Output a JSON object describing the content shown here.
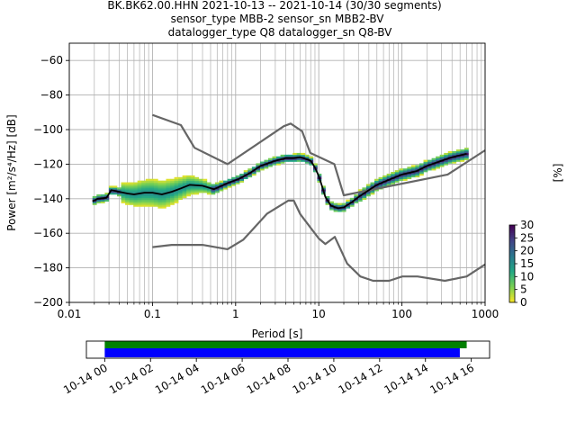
{
  "title": {
    "line1": "BK.BK62.00.HHN   2021-10-13 -- 2021-10-14  (30/30 segments)",
    "line2": "sensor_type MBB-2 sensor_sn MBB2-BV",
    "line3": "datalogger_type Q8 datalogger_sn Q8-BV"
  },
  "colors": {
    "model_curves": "#666666",
    "mode_line": "#000000",
    "green_bar": "#008000",
    "blue_bar": "#0000ff",
    "grid": "#b0b0b0"
  },
  "chart_data": [
    {
      "type": "heatmap",
      "xlabel": "Period [s]",
      "ylabel": "Power [m²/s⁴/Hz] [dB]",
      "xscale": "log",
      "xlim": [
        0.01,
        1000
      ],
      "ylim": [
        -200,
        -50
      ],
      "grid": true,
      "x_tick_labels": [
        "0.01",
        "0.1",
        "1",
        "10",
        "100",
        "1000"
      ],
      "x_tick_values": [
        0.01,
        0.1,
        1,
        10,
        100,
        1000
      ],
      "y_tick_labels": [
        "−60",
        "−80",
        "−100",
        "−120",
        "−140",
        "−160",
        "−180",
        "−200"
      ],
      "y_tick_values": [
        -60,
        -80,
        -100,
        -120,
        -140,
        -160,
        -180,
        -200
      ],
      "colorbar": {
        "label": "[%]",
        "range": [
          0,
          30
        ],
        "tick_labels": [
          "0",
          "5",
          "10",
          "15",
          "20",
          "25",
          "30"
        ],
        "tick_values": [
          0,
          5,
          10,
          15,
          20,
          25,
          30
        ]
      },
      "series": [
        {
          "role": "high_noise_model",
          "x": [
            0.1,
            0.22,
            0.32,
            0.8,
            3.8,
            4.6,
            6.3,
            7.9,
            15.4,
            20,
            354.8,
            1000
          ],
          "y": [
            -91.5,
            -97.4,
            -110.5,
            -120,
            -98,
            -96.5,
            -101,
            -113.5,
            -120,
            -138,
            -126,
            -112
          ]
        },
        {
          "role": "low_noise_model",
          "x": [
            0.1,
            0.17,
            0.4,
            0.8,
            1.24,
            2.4,
            4.3,
            5,
            6,
            10,
            12,
            15.6,
            21.9,
            31.6,
            45,
            70,
            101,
            154,
            328,
            600,
            1000
          ],
          "y": [
            -168,
            -166.7,
            -166.7,
            -169.2,
            -163.7,
            -148.6,
            -141.1,
            -141.1,
            -149,
            -163,
            -166.2,
            -162.1,
            -177.5,
            -185,
            -187.5,
            -187.5,
            -185,
            -185,
            -187.5,
            -185,
            -178
          ]
        },
        {
          "role": "mode",
          "x": [
            0.019,
            0.022,
            0.028,
            0.032,
            0.04,
            0.05,
            0.06,
            0.08,
            0.1,
            0.13,
            0.17,
            0.22,
            0.28,
            0.4,
            0.55,
            0.8,
            1.1,
            1.5,
            2,
            3,
            4,
            5,
            6,
            7,
            8,
            9,
            10,
            11,
            12,
            14,
            17,
            20,
            25,
            30,
            40,
            50,
            70,
            100,
            150,
            200,
            300,
            400,
            600
          ],
          "y": [
            -141.5,
            -140,
            -139.5,
            -135,
            -136,
            -137,
            -137.5,
            -136.5,
            -136.5,
            -137.5,
            -136,
            -134,
            -132,
            -132.5,
            -134.5,
            -131,
            -128.5,
            -125,
            -121,
            -118,
            -116.5,
            -116.5,
            -116,
            -117,
            -118,
            -122,
            -127,
            -133,
            -139,
            -144,
            -145.5,
            -145,
            -142,
            -139,
            -135,
            -132,
            -129,
            -126,
            -124,
            -121,
            -118,
            -116,
            -114
          ]
        }
      ]
    },
    {
      "type": "bar",
      "x_tick_labels": [
        "10-14 00",
        "10-14 02",
        "10-14 04",
        "10-14 06",
        "10-14 08",
        "10-14 10",
        "10-14 12",
        "10-14 14",
        "10-14 16"
      ],
      "x_tick_hours": [
        0,
        2,
        4,
        6,
        8,
        10,
        12,
        14,
        16
      ],
      "xlim_hours": [
        -0.8,
        16.8
      ],
      "series": [
        {
          "color": "green",
          "start_hour": 0,
          "end_hour": 15.8
        },
        {
          "color": "blue",
          "start_hour": 0,
          "end_hour": 15.5
        }
      ]
    }
  ]
}
